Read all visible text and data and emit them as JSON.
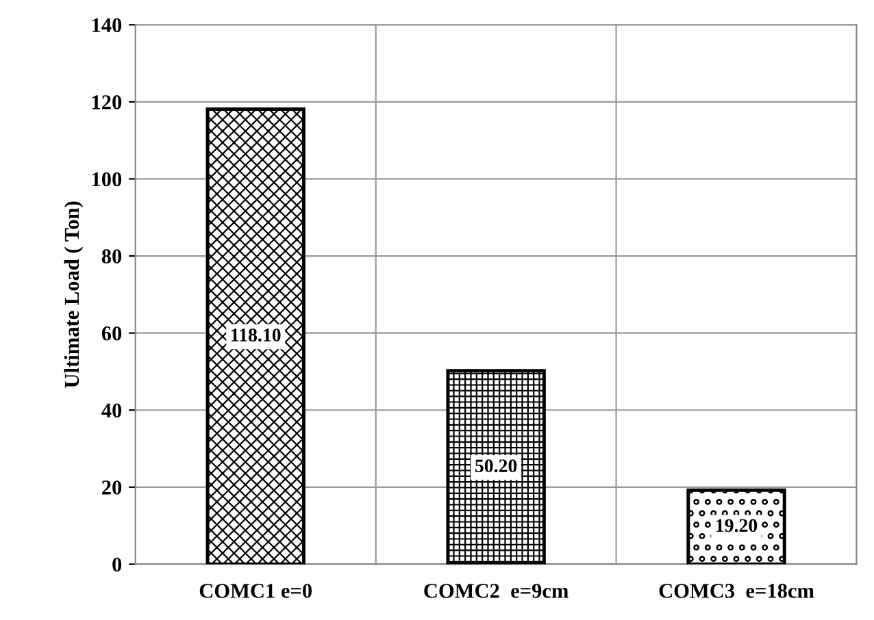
{
  "chart_data": {
    "type": "bar",
    "ylabel": "Ultimate Load ( Ton)",
    "categories": [
      "COMC1 e=0",
      "COMC2  e=9cm",
      "COMC3  e=18cm"
    ],
    "values": [
      118.1,
      50.2,
      19.2
    ],
    "value_labels": [
      "118.10",
      "50.20",
      "19.20"
    ],
    "colors": [
      "#000000",
      "#000000",
      "#000000"
    ],
    "ylim": [
      0,
      140
    ],
    "yticks": [
      0,
      20,
      40,
      60,
      80,
      100,
      120,
      140
    ],
    "grid": true
  }
}
